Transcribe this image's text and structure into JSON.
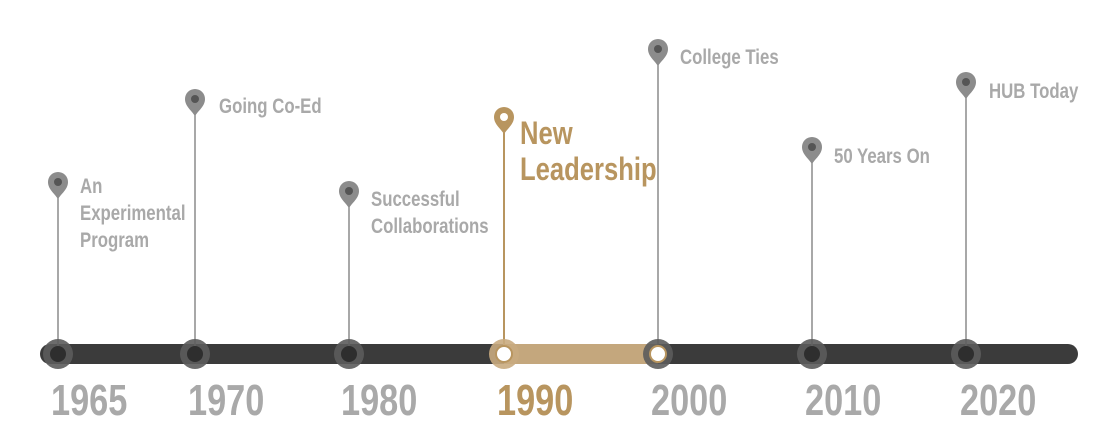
{
  "timeline": {
    "events": [
      {
        "year": "1965",
        "title": "An Experimental Program"
      },
      {
        "year": "1970",
        "title": "Going Co-Ed"
      },
      {
        "year": "1980",
        "title": "Successful Collaborations"
      },
      {
        "year": "1990",
        "title": "New Leadership"
      },
      {
        "year": "2000",
        "title": "College Ties"
      },
      {
        "year": "2010",
        "title": "50 Years On"
      },
      {
        "year": "2020",
        "title": "HUB Today"
      }
    ]
  }
}
